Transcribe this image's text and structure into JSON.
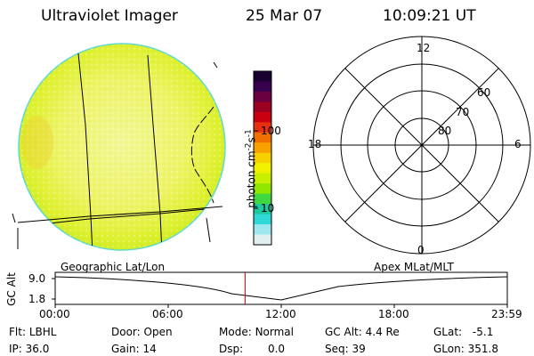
{
  "header": {
    "instrument": "Ultraviolet Imager",
    "date": "25 Mar 07",
    "time": "10:09:21 UT"
  },
  "colorbar": {
    "unit_label": "photon cm",
    "unit_exp1": "-2",
    "unit_s": "s",
    "unit_exp2": "-1",
    "ticks": [
      "100",
      "10"
    ],
    "colors": [
      "#1a0030",
      "#3a0050",
      "#6a0040",
      "#9a0020",
      "#c80010",
      "#e83010",
      "#f07000",
      "#f8a000",
      "#f8d000",
      "#f0f000",
      "#c8f000",
      "#90e800",
      "#40d840",
      "#20c8a0",
      "#30d8d8",
      "#a0e8f0",
      "#e0f0f0"
    ]
  },
  "polar_plot": {
    "mlt_labels": [
      "12",
      "18",
      "6",
      "0"
    ],
    "lat_labels": [
      "60",
      "70",
      "80"
    ]
  },
  "altitude_plot": {
    "ylabel": "GC Alt",
    "yticks": [
      "9.0",
      "1.8"
    ],
    "left_label": "Geographic Lat/Lon",
    "right_label": "Apex MLat/MLT",
    "xticks": [
      "00:00",
      "06:00",
      "12:00",
      "18:00",
      "23:59"
    ],
    "current_fraction": 0.42
  },
  "info": {
    "flt_label": "Flt:",
    "flt_value": "LBHL",
    "door_label": "Door:",
    "door_value": "Open",
    "mode_label": "Mode:",
    "mode_value": "Normal",
    "gcalt_label": "GC Alt:",
    "gcalt_value": "4.4 Re",
    "glat_label": "GLat:",
    "glat_value": "-5.1",
    "ip_label": "IP:",
    "ip_value": "36.0",
    "gain_label": "Gain:",
    "gain_value": "14",
    "dsp_label": "Dsp:",
    "dsp_value": "0.0",
    "seq_label": "Seq:",
    "seq_value": "39",
    "glon_label": "GLon:",
    "glon_value": "351.8"
  }
}
